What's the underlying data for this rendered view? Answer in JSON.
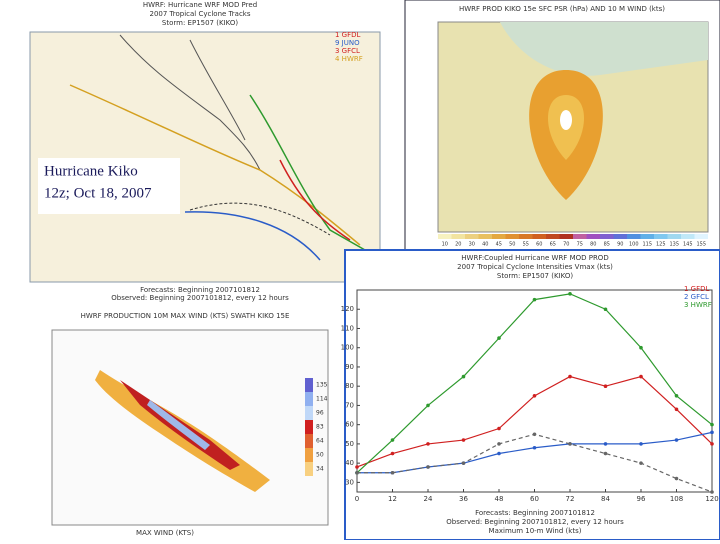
{
  "overlay": {
    "lines": [
      "Hurricane Kiko",
      "12z; Oct 18, 2007"
    ]
  },
  "track_panel": {
    "title": [
      "HWRF: Hurricane WRF MOD Pred",
      "2007 Tropical Cyclone Tracks",
      "Storm: EP1507 (KIKO)"
    ],
    "legend": [
      "1 GFDL",
      "9 JUNO",
      "3 GFCL",
      "4 HWRF"
    ],
    "footer": [
      "Forecasts: Beginning 2007101812",
      "Observed: Beginning 2007101812, every 12 hours"
    ]
  },
  "pressure_panel": {
    "title": "HWRF PROD KIKO 15e SFC PSR (hPa) AND 10 M WIND (kts)",
    "colorbar": [
      "10",
      "20",
      "30",
      "40",
      "45",
      "50",
      "55",
      "60",
      "65",
      "70",
      "75",
      "80",
      "85",
      "90",
      "100",
      "115",
      "125",
      "135",
      "145",
      "155"
    ]
  },
  "swath_panel": {
    "title": "HWRF PRODUCTION 10M MAX WIND (KTS) SWATH KIKO 15E",
    "colorbar": [
      "135",
      "114",
      "96",
      "83",
      "64",
      "50",
      "34"
    ],
    "footer": "MAX WIND (KTS)"
  },
  "chart_data": {
    "type": "line",
    "title": [
      "HWRF:Coupled Hurricane WRF MOD PROD",
      "2007 Tropical Cyclone Intensities Vmax (kts)",
      "Storm: EP1507 (KIKO)"
    ],
    "footer": [
      "Forecasts: Beginning 2007101812",
      "Observed: Beginning 2007101812, every 12 hours",
      "Maximum 10-m Wind (kts)"
    ],
    "x": [
      0,
      12,
      24,
      36,
      48,
      60,
      72,
      84,
      96,
      108,
      120
    ],
    "series": [
      {
        "name": "1 GFDL",
        "color": "#d02020",
        "values": [
          38,
          45,
          50,
          52,
          58,
          75,
          85,
          80,
          85,
          68,
          50
        ]
      },
      {
        "name": "2 GFCL",
        "color": "#2a5cc8",
        "values": [
          35,
          35,
          38,
          40,
          45,
          48,
          50,
          50,
          50,
          52,
          56
        ]
      },
      {
        "name": "3 HWRF",
        "color": "#2e9a2e",
        "values": [
          35,
          52,
          70,
          85,
          105,
          125,
          128,
          120,
          100,
          75,
          60
        ]
      },
      {
        "color": "#666666",
        "dashed": true,
        "values": [
          35,
          35,
          38,
          40,
          50,
          55,
          50,
          45,
          40,
          32,
          25
        ]
      }
    ],
    "xlim": [
      0,
      120
    ],
    "xticks": [
      0,
      12,
      24,
      36,
      48,
      60,
      72,
      84,
      96,
      108,
      120
    ],
    "ylim": [
      25,
      130
    ],
    "yticks": [
      30,
      40,
      50,
      60,
      70,
      80,
      90,
      100,
      110,
      120
    ],
    "grid": false
  }
}
